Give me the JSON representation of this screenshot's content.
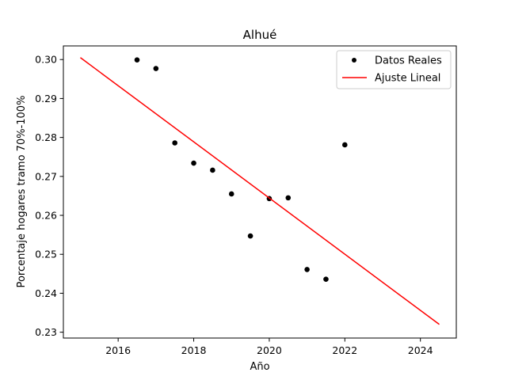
{
  "chart_data": {
    "type": "scatter",
    "title": "Alhué",
    "xlabel": "Año",
    "ylabel": "Porcentaje hogares tramo 70%-100%",
    "xlim": [
      2014.55,
      2024.95
    ],
    "ylim": [
      0.2285,
      0.3035
    ],
    "xticks": [
      2016,
      2018,
      2020,
      2022,
      2024
    ],
    "yticks": [
      0.23,
      0.24,
      0.25,
      0.26,
      0.27,
      0.28,
      0.29,
      0.3
    ],
    "xtick_labels": [
      "2016",
      "2018",
      "2020",
      "2022",
      "2024"
    ],
    "ytick_labels": [
      "0.23",
      "0.24",
      "0.25",
      "0.26",
      "0.27",
      "0.28",
      "0.29",
      "0.30"
    ],
    "grid": false,
    "legend_position": "top-right",
    "series": [
      {
        "name": "Datos Reales",
        "kind": "scatter",
        "color": "#000000",
        "x": [
          2016.5,
          2017.0,
          2017.5,
          2018.0,
          2018.5,
          2019.0,
          2019.5,
          2020.0,
          2020.5,
          2021.0,
          2021.5,
          2022.0
        ],
        "y": [
          0.2999,
          0.2977,
          0.2786,
          0.2734,
          0.2716,
          0.2655,
          0.2547,
          0.2643,
          0.2645,
          0.2461,
          0.2436,
          0.2781
        ]
      },
      {
        "name": "Ajuste Lineal",
        "kind": "line",
        "color": "#ff0000",
        "x": [
          2015.0,
          2024.5
        ],
        "y": [
          0.3005,
          0.232
        ]
      }
    ]
  }
}
